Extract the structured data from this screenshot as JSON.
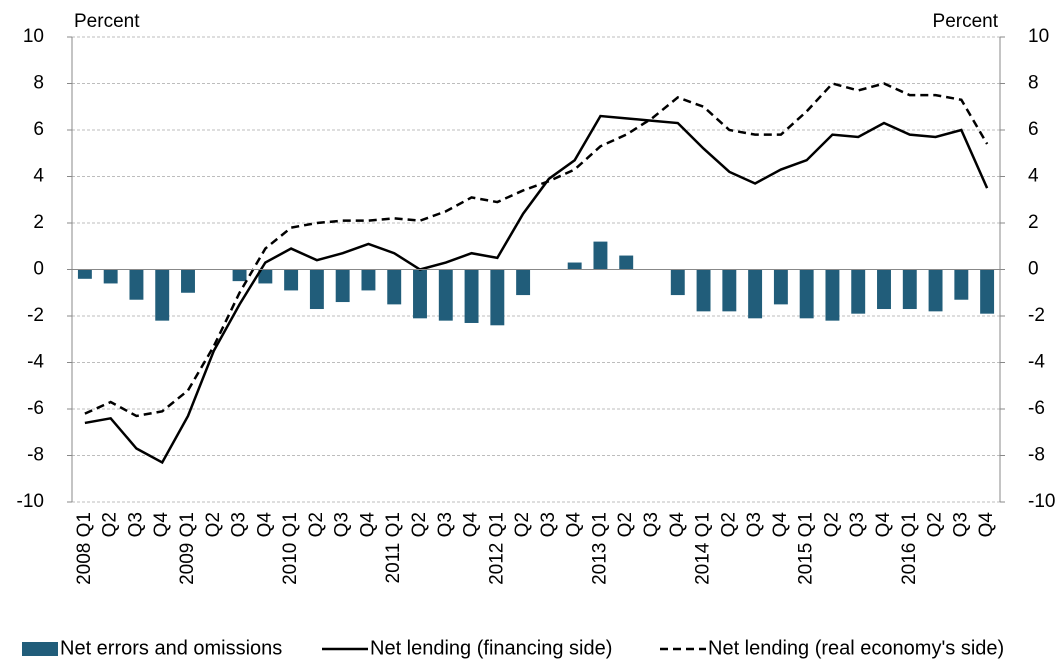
{
  "chart_data": {
    "type": "combo",
    "y_label": "Percent",
    "y2_label": "Percent",
    "categories": [
      "2008 Q1",
      "Q2",
      "Q3",
      "Q4",
      "2009 Q1",
      "Q2",
      "Q3",
      "Q4",
      "2010 Q1",
      "Q2",
      "Q3",
      "Q4",
      "2011 Q1",
      "Q2",
      "Q3",
      "Q4",
      "2012 Q1",
      "Q2",
      "Q3",
      "Q4",
      "2013 Q1",
      "Q2",
      "Q3",
      "Q4",
      "2014 Q1",
      "Q2",
      "Q3",
      "Q4",
      "2015 Q1",
      "Q2",
      "Q3",
      "Q4",
      "2016 Q1",
      "Q2",
      "Q3",
      "Q4"
    ],
    "series": [
      {
        "name": "Net errors and omissions",
        "type": "bar",
        "color": "#215d7a",
        "values": [
          -0.4,
          -0.6,
          -1.3,
          -2.2,
          -1.0,
          0.0,
          -0.5,
          -0.6,
          -0.9,
          -1.7,
          -1.4,
          -0.9,
          -1.5,
          -2.1,
          -2.2,
          -2.3,
          -2.4,
          -1.1,
          0.0,
          0.3,
          1.2,
          0.6,
          0.0,
          -1.1,
          -1.8,
          -1.8,
          -2.1,
          -1.5,
          -2.1,
          -2.2,
          -1.9,
          -1.7,
          -1.7,
          -1.8,
          -1.3,
          -1.9
        ]
      },
      {
        "name": "Net lending (financing side)",
        "type": "line",
        "line_style": "solid",
        "color": "#000000",
        "values": [
          -6.6,
          -6.4,
          -7.7,
          -8.3,
          -6.3,
          -3.5,
          -1.5,
          0.3,
          0.9,
          0.4,
          0.7,
          1.1,
          0.7,
          0.0,
          0.3,
          0.7,
          0.5,
          2.4,
          3.9,
          4.7,
          6.6,
          6.5,
          6.4,
          6.3,
          5.2,
          4.2,
          3.7,
          4.3,
          4.7,
          5.8,
          5.7,
          6.3,
          5.8,
          5.7,
          6.0,
          3.5
        ]
      },
      {
        "name": "Net lending (real economy's side)",
        "type": "line",
        "line_style": "dashed",
        "color": "#000000",
        "values": [
          -6.2,
          -5.7,
          -6.3,
          -6.1,
          -5.2,
          -3.3,
          -1.0,
          0.9,
          1.8,
          2.0,
          2.1,
          2.1,
          2.2,
          2.1,
          2.5,
          3.1,
          2.9,
          3.4,
          3.8,
          4.3,
          5.3,
          5.8,
          6.5,
          7.4,
          7.0,
          6.0,
          5.8,
          5.8,
          6.8,
          8.0,
          7.7,
          8.0,
          7.5,
          7.5,
          7.3,
          5.4
        ]
      }
    ],
    "ylim": [
      -10,
      10
    ],
    "yticks": [
      -10,
      -8,
      -6,
      -4,
      -2,
      0,
      2,
      4,
      6,
      8,
      10
    ],
    "y2lim": [
      -10,
      10
    ],
    "y2ticks": [
      -10,
      -8,
      -6,
      -4,
      -2,
      0,
      2,
      4,
      6,
      8,
      10
    ],
    "grid": true,
    "legend": "bottom"
  }
}
